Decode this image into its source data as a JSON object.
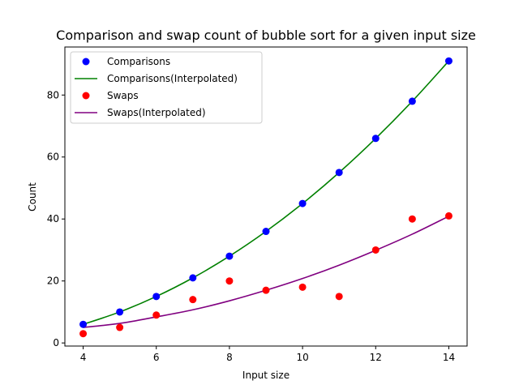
{
  "chart_data": {
    "type": "scatter",
    "title": "Comparison and swap count of bubble sort for a given input size",
    "xlabel": "Input size",
    "ylabel": "Count",
    "xlim": [
      3.5,
      14.5
    ],
    "ylim": [
      -1,
      95.5
    ],
    "xticks": [
      4,
      6,
      8,
      10,
      12,
      14
    ],
    "yticks": [
      0,
      20,
      40,
      60,
      80
    ],
    "grid": false,
    "legend_position": "top-left",
    "colors": {
      "comparisons": "#0000ff",
      "comparisons_fit": "#008000",
      "swaps": "#ff0000",
      "swaps_fit": "#800080"
    },
    "series": [
      {
        "name": "Comparisons",
        "kind": "scatter",
        "color": "#0000ff",
        "x": [
          4,
          5,
          6,
          7,
          8,
          9,
          10,
          11,
          12,
          13,
          14
        ],
        "y": [
          6,
          10,
          15,
          21,
          28,
          36,
          45,
          55,
          66,
          78,
          91
        ]
      },
      {
        "name": "Comparisons(Interpolated)",
        "kind": "line",
        "color": "#008000",
        "x": [
          4,
          5,
          6,
          7,
          8,
          9,
          10,
          11,
          12,
          13,
          14
        ],
        "y": [
          6,
          10,
          15,
          21,
          28,
          36,
          45,
          55,
          66,
          78,
          91
        ]
      },
      {
        "name": "Swaps",
        "kind": "scatter",
        "color": "#ff0000",
        "x": [
          4,
          5,
          6,
          7,
          8,
          9,
          10,
          11,
          12,
          13,
          14
        ],
        "y": [
          3,
          5,
          9,
          14,
          20,
          17,
          18,
          15,
          30,
          40,
          41
        ]
      },
      {
        "name": "Swaps(Interpolated)",
        "kind": "line",
        "color": "#800080",
        "x": [
          4,
          5,
          6,
          7,
          8,
          9,
          10,
          11,
          12,
          13,
          14
        ],
        "y": [
          5,
          6.3,
          8.4,
          10.7,
          13.6,
          17,
          20.8,
          25.1,
          29.9,
          35.1,
          40.9
        ]
      }
    ]
  }
}
